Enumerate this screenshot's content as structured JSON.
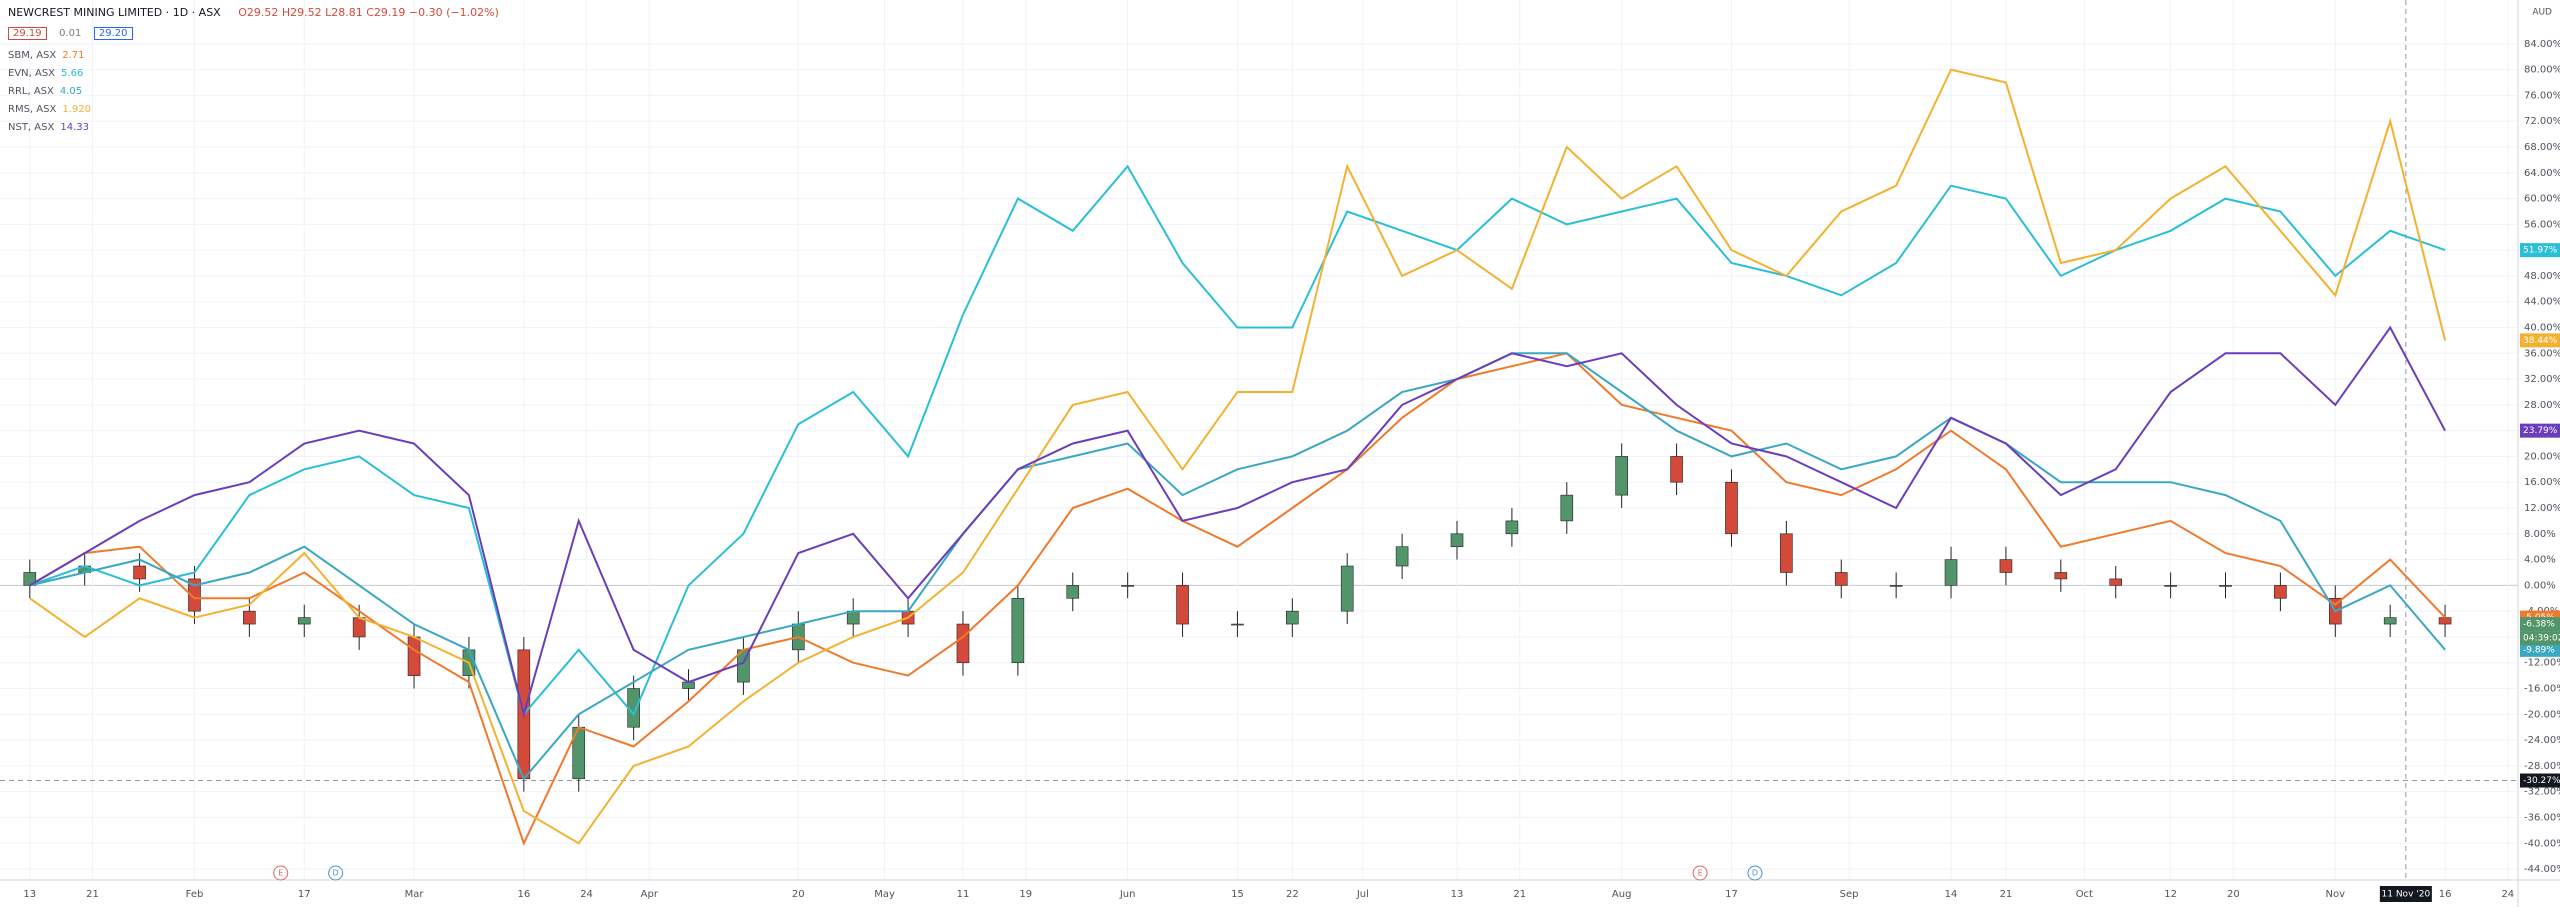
{
  "header": {
    "title": "NEWCREST MINING LIMITED · 1D · ASX",
    "ohlc": "O29.52 H29.52 L28.81 C29.19 −0.30 (−1.02%)",
    "bid": "29.19",
    "spread": "0.01",
    "ask": "29.20",
    "currency": "AUD"
  },
  "chart_data": {
    "type": "candlestick",
    "x": [
      13,
      20,
      27,
      34,
      41,
      48,
      55,
      62,
      69,
      76,
      83,
      90,
      97,
      104,
      111,
      118,
      125,
      132,
      139,
      146,
      153,
      160,
      167,
      174,
      181,
      188,
      195,
      202,
      209,
      216,
      223,
      230,
      237,
      244,
      251,
      258,
      265,
      272,
      279,
      286,
      293,
      300,
      307,
      314,
      321
    ],
    "open": [
      0,
      2,
      3,
      1,
      -4,
      -6,
      -5,
      -8,
      -14,
      -10,
      -30,
      -22,
      -16,
      -15,
      -10,
      -6,
      -4,
      -6,
      -12,
      -2,
      0,
      0,
      -6,
      -6,
      -4,
      3,
      6,
      8,
      10,
      14,
      20,
      16,
      8,
      2,
      0,
      0,
      4,
      2,
      1,
      0,
      0,
      0,
      -2,
      -6,
      -5
    ],
    "high": [
      4,
      5,
      5,
      3,
      -2,
      -3,
      -3,
      -6,
      -8,
      -8,
      -20,
      -14,
      -13,
      -8,
      -4,
      -2,
      -2,
      -4,
      0,
      2,
      2,
      2,
      -4,
      -2,
      5,
      8,
      10,
      12,
      16,
      22,
      22,
      18,
      10,
      4,
      2,
      6,
      6,
      4,
      3,
      2,
      2,
      2,
      0,
      -3,
      -3
    ],
    "low": [
      -2,
      0,
      -1,
      -6,
      -8,
      -8,
      -10,
      -16,
      -16,
      -32,
      -32,
      -24,
      -18,
      -17,
      -12,
      -8,
      -8,
      -14,
      -14,
      -4,
      -2,
      -8,
      -8,
      -8,
      -6,
      1,
      4,
      6,
      8,
      12,
      14,
      6,
      0,
      -2,
      -2,
      -2,
      0,
      -1,
      -2,
      -2,
      -2,
      -4,
      -8,
      -8,
      -8
    ],
    "close": [
      2,
      3,
      1,
      -4,
      -6,
      -5,
      -8,
      -14,
      -10,
      -30,
      -22,
      -16,
      -15,
      -10,
      -6,
      -4,
      -6,
      -12,
      -2,
      0,
      0,
      -6,
      -6,
      -4,
      3,
      6,
      8,
      10,
      14,
      20,
      16,
      8,
      2,
      0,
      0,
      4,
      2,
      1,
      0,
      0,
      0,
      -2,
      -6,
      -5,
      -6
    ],
    "up_color": "#53956a",
    "down_color": "#d44a3a",
    "last_label": "-6.38%",
    "countdown": "04:39:02",
    "series": [
      {
        "name": "SBM, ASX",
        "legend_value": "2.71",
        "color": "#f0792b",
        "last_label": "-5.05%",
        "values": [
          0,
          5,
          6,
          -2,
          -2,
          2,
          -4,
          -10,
          -15,
          -40,
          -22,
          -25,
          -18,
          -10,
          -8,
          -12,
          -14,
          -8,
          0,
          12,
          15,
          10,
          6,
          12,
          18,
          26,
          32,
          34,
          36,
          28,
          26,
          24,
          16,
          14,
          18,
          24,
          18,
          6,
          8,
          10,
          5,
          3,
          -3,
          4,
          -5
        ]
      },
      {
        "name": "EVN, ASX",
        "legend_value": "5.66",
        "color": "#29bfd6",
        "last_label": "51.97%",
        "values": [
          0,
          3,
          0,
          2,
          14,
          18,
          20,
          14,
          12,
          -20,
          -10,
          -20,
          0,
          8,
          25,
          30,
          20,
          42,
          60,
          55,
          65,
          50,
          40,
          40,
          58,
          55,
          52,
          60,
          56,
          58,
          60,
          50,
          48,
          45,
          50,
          62,
          60,
          48,
          52,
          55,
          60,
          58,
          48,
          55,
          52
        ]
      },
      {
        "name": "RRL, ASX",
        "legend_value": "4.05",
        "color": "#3aa8c0",
        "last_label": "-9.89%",
        "values": [
          0,
          2,
          4,
          0,
          2,
          6,
          0,
          -6,
          -10,
          -30,
          -20,
          -15,
          -10,
          -8,
          -6,
          -4,
          -4,
          8,
          18,
          20,
          22,
          14,
          18,
          20,
          24,
          30,
          32,
          36,
          36,
          30,
          24,
          20,
          22,
          18,
          20,
          26,
          22,
          16,
          16,
          16,
          14,
          10,
          -4,
          0,
          -10
        ]
      },
      {
        "name": "RMS, ASX",
        "legend_value": "1.920",
        "color": "#f2b230",
        "last_label": "38.44%",
        "values": [
          -2,
          -8,
          -2,
          -5,
          -3,
          5,
          -5,
          -8,
          -12,
          -35,
          -40,
          -28,
          -25,
          -18,
          -12,
          -8,
          -5,
          2,
          15,
          28,
          30,
          18,
          30,
          30,
          65,
          48,
          52,
          46,
          68,
          60,
          65,
          52,
          48,
          58,
          62,
          80,
          78,
          50,
          52,
          60,
          65,
          55,
          45,
          72,
          38
        ]
      },
      {
        "name": "NST, ASX",
        "legend_value": "14.33",
        "color": "#6a3dbb",
        "last_label": "23.79%",
        "values": [
          0,
          5,
          10,
          14,
          16,
          22,
          24,
          22,
          14,
          -20,
          10,
          -10,
          -15,
          -12,
          5,
          8,
          -2,
          8,
          18,
          22,
          24,
          10,
          12,
          16,
          18,
          28,
          32,
          36,
          34,
          36,
          28,
          22,
          20,
          16,
          12,
          26,
          22,
          14,
          18,
          30,
          36,
          36,
          28,
          40,
          24
        ]
      }
    ],
    "xlim": [
      9.2,
      330.3
    ],
    "xticks": [
      13,
      21,
      {
        "value": 34,
        "label": "Feb"
      },
      {
        "value": 48,
        "label": "17"
      },
      {
        "value": 62,
        "label": "Mar"
      },
      {
        "value": 76,
        "label": "16"
      },
      {
        "value": 84,
        "label": "24"
      },
      {
        "value": 92,
        "label": "Apr"
      },
      {
        "value": 111,
        "label": "20"
      },
      {
        "value": 122,
        "label": "May"
      },
      {
        "value": 132,
        "label": "11"
      },
      {
        "value": 140,
        "label": "19"
      },
      {
        "value": 153,
        "label": "Jun"
      },
      {
        "value": 167,
        "label": "15"
      },
      {
        "value": 174,
        "label": "22"
      },
      {
        "value": 183,
        "label": "Jul"
      },
      {
        "value": 195,
        "label": "13"
      },
      {
        "value": 203,
        "label": "21"
      },
      {
        "value": 216,
        "label": "Aug"
      },
      {
        "value": 230,
        "label": "17"
      },
      {
        "value": 245,
        "label": "Sep"
      },
      {
        "value": 258,
        "label": "14"
      },
      {
        "value": 265,
        "label": "21"
      },
      {
        "value": 275,
        "label": "Oct"
      },
      {
        "value": 286,
        "label": "12"
      },
      {
        "value": 294,
        "label": "20"
      },
      {
        "value": 307,
        "label": "Nov"
      },
      {
        "value": 321,
        "label": "16"
      },
      {
        "value": 329,
        "label": "24"
      }
    ],
    "ylim": [
      -45.7,
      90.8
    ],
    "yticks": [
      {
        "value": 84,
        "label": "84.00%"
      },
      {
        "value": 80,
        "label": "80.00%"
      },
      {
        "value": 76,
        "label": "76.00%"
      },
      {
        "value": 72,
        "label": "72.00%"
      },
      {
        "value": 68,
        "label": "68.00%"
      },
      {
        "value": 64,
        "label": "64.00%"
      },
      {
        "value": 60,
        "label": "60.00%"
      },
      {
        "value": 56,
        "label": "56.00%"
      },
      {
        "value": 52,
        "label": "52.00%"
      },
      {
        "value": 48,
        "label": "48.00%"
      },
      {
        "value": 44,
        "label": "44.00%"
      },
      {
        "value": 40,
        "label": "40.00%"
      },
      {
        "value": 36,
        "label": "36.00%"
      },
      {
        "value": 32,
        "label": "32.00%"
      },
      {
        "value": 28,
        "label": "28.00%"
      },
      {
        "value": 24,
        "label": "24.00%"
      },
      {
        "value": 20,
        "label": "20.00%"
      },
      {
        "value": 16,
        "label": "16.00%"
      },
      {
        "value": 12,
        "label": "12.00%"
      },
      {
        "value": 8,
        "label": "8.00%"
      },
      {
        "value": 4,
        "label": "4.00%"
      },
      {
        "value": 0,
        "label": "0.00%"
      },
      {
        "value": -4,
        "label": "-4.00%"
      },
      {
        "value": -8,
        "label": "-8.00%"
      },
      {
        "value": -12,
        "label": "-12.00%"
      },
      {
        "value": -16,
        "label": "-16.00%"
      },
      {
        "value": -20,
        "label": "-20.00%"
      },
      {
        "value": -24,
        "label": "-24.00%"
      },
      {
        "value": -28,
        "label": "-28.00%"
      },
      {
        "value": -32,
        "label": "-32.00%"
      },
      {
        "value": -36,
        "label": "-36.00%"
      },
      {
        "value": -40,
        "label": "-40.00%"
      },
      {
        "value": -44,
        "label": "-44.00%"
      }
    ],
    "grid": true,
    "crosshair": {
      "x": 316,
      "x_label": "11 Nov '20",
      "y": -30.27,
      "y_label": "-30.27%"
    },
    "events": [
      {
        "x": 45,
        "label": "E",
        "color": "#e06666"
      },
      {
        "x": 52,
        "label": "D",
        "color": "#4a90c8"
      },
      {
        "x": 226,
        "label": "E",
        "color": "#e06666"
      },
      {
        "x": 233,
        "label": "D",
        "color": "#4a90c8"
      }
    ]
  }
}
